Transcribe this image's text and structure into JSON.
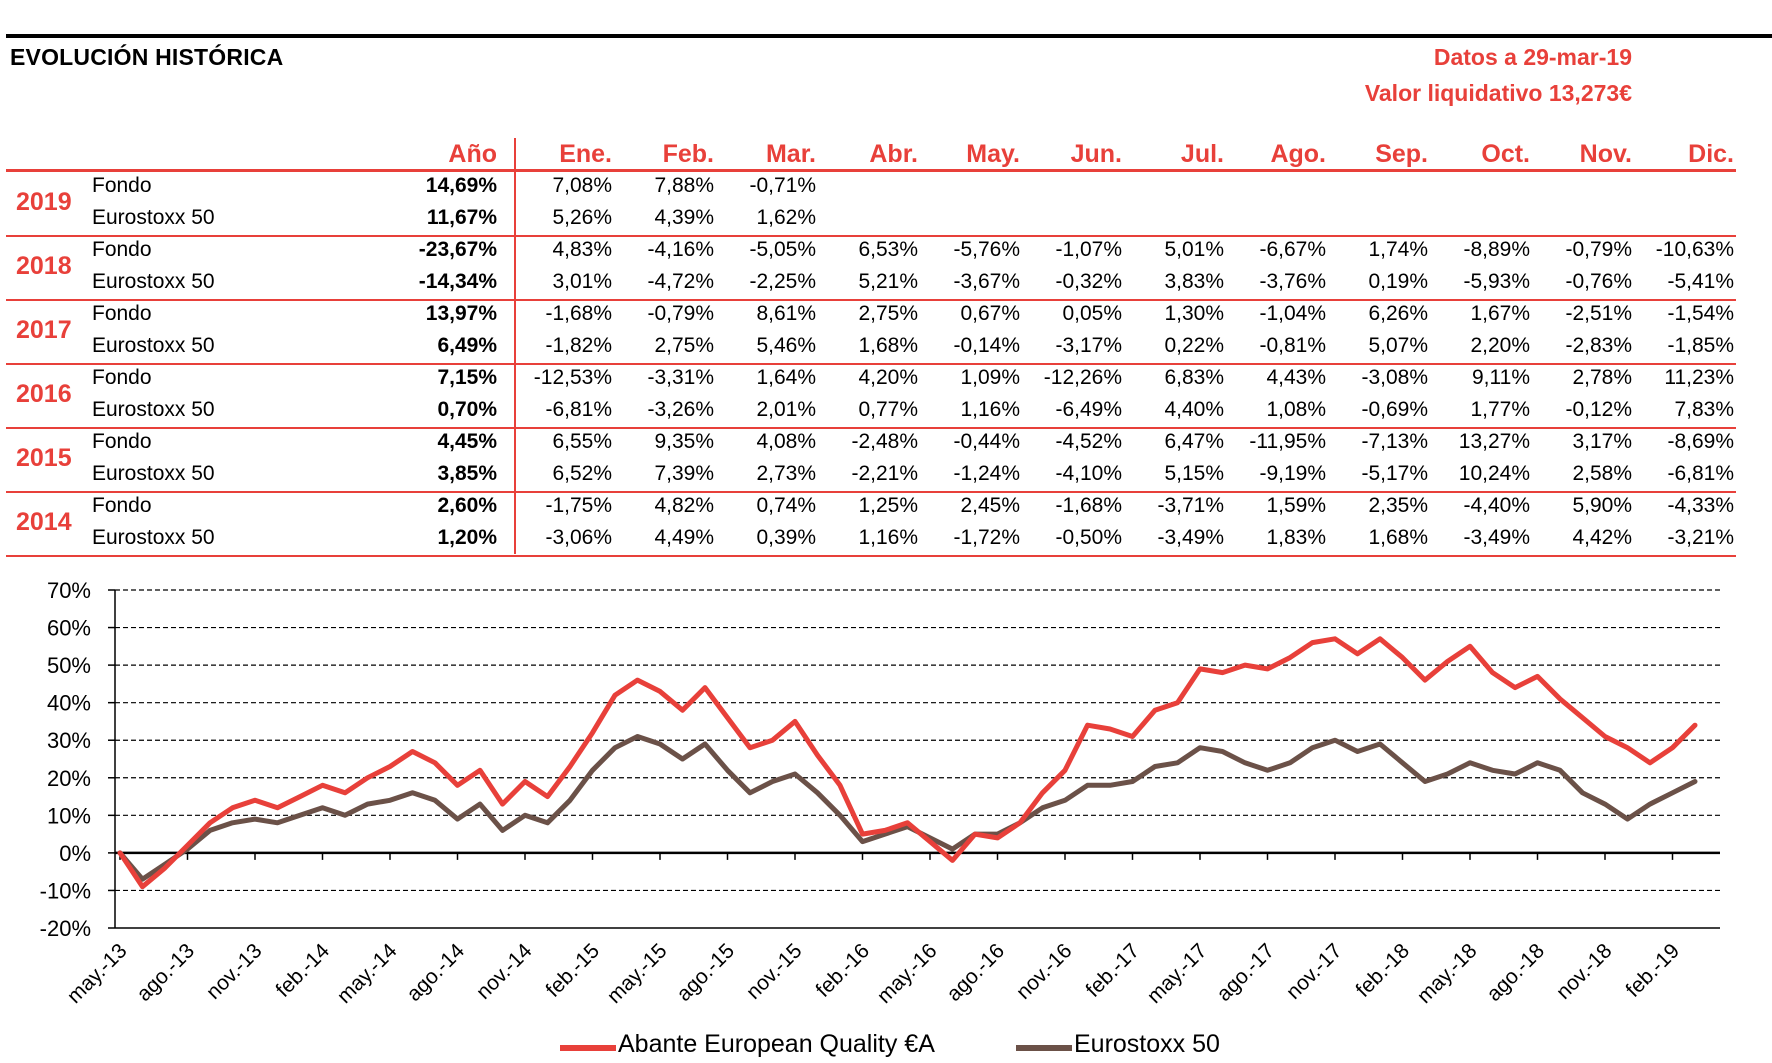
{
  "header": {
    "title": "EVOLUCIÓN HISTÓRICA",
    "date_line": "Datos a 29-mar-19",
    "nav_line": "Valor liquidativo 13,273€"
  },
  "table": {
    "columns": [
      "Año",
      "Ene.",
      "Feb.",
      "Mar.",
      "Abr.",
      "May.",
      "Jun.",
      "Jul.",
      "Ago.",
      "Sep.",
      "Oct.",
      "Nov.",
      "Dic."
    ],
    "years": [
      {
        "year": "2019",
        "rows": [
          {
            "label": "Fondo",
            "annual": "14,69%",
            "months": [
              "7,08%",
              "7,88%",
              "-0,71%",
              "",
              "",
              "",
              "",
              "",
              "",
              "",
              "",
              ""
            ]
          },
          {
            "label": "Eurostoxx 50",
            "annual": "11,67%",
            "months": [
              "5,26%",
              "4,39%",
              "1,62%",
              "",
              "",
              "",
              "",
              "",
              "",
              "",
              "",
              ""
            ]
          }
        ]
      },
      {
        "year": "2018",
        "rows": [
          {
            "label": "Fondo",
            "annual": "-23,67%",
            "months": [
              "4,83%",
              "-4,16%",
              "-5,05%",
              "6,53%",
              "-5,76%",
              "-1,07%",
              "5,01%",
              "-6,67%",
              "1,74%",
              "-8,89%",
              "-0,79%",
              "-10,63%"
            ]
          },
          {
            "label": "Eurostoxx 50",
            "annual": "-14,34%",
            "months": [
              "3,01%",
              "-4,72%",
              "-2,25%",
              "5,21%",
              "-3,67%",
              "-0,32%",
              "3,83%",
              "-3,76%",
              "0,19%",
              "-5,93%",
              "-0,76%",
              "-5,41%"
            ]
          }
        ]
      },
      {
        "year": "2017",
        "rows": [
          {
            "label": "Fondo",
            "annual": "13,97%",
            "months": [
              "-1,68%",
              "-0,79%",
              "8,61%",
              "2,75%",
              "0,67%",
              "0,05%",
              "1,30%",
              "-1,04%",
              "6,26%",
              "1,67%",
              "-2,51%",
              "-1,54%"
            ]
          },
          {
            "label": "Eurostoxx 50",
            "annual": "6,49%",
            "months": [
              "-1,82%",
              "2,75%",
              "5,46%",
              "1,68%",
              "-0,14%",
              "-3,17%",
              "0,22%",
              "-0,81%",
              "5,07%",
              "2,20%",
              "-2,83%",
              "-1,85%"
            ]
          }
        ]
      },
      {
        "year": "2016",
        "rows": [
          {
            "label": "Fondo",
            "annual": "7,15%",
            "months": [
              "-12,53%",
              "-3,31%",
              "1,64%",
              "4,20%",
              "1,09%",
              "-12,26%",
              "6,83%",
              "4,43%",
              "-3,08%",
              "9,11%",
              "2,78%",
              "11,23%"
            ]
          },
          {
            "label": "Eurostoxx 50",
            "annual": "0,70%",
            "months": [
              "-6,81%",
              "-3,26%",
              "2,01%",
              "0,77%",
              "1,16%",
              "-6,49%",
              "4,40%",
              "1,08%",
              "-0,69%",
              "1,77%",
              "-0,12%",
              "7,83%"
            ]
          }
        ]
      },
      {
        "year": "2015",
        "rows": [
          {
            "label": "Fondo",
            "annual": "4,45%",
            "months": [
              "6,55%",
              "9,35%",
              "4,08%",
              "-2,48%",
              "-0,44%",
              "-4,52%",
              "6,47%",
              "-11,95%",
              "-7,13%",
              "13,27%",
              "3,17%",
              "-8,69%"
            ]
          },
          {
            "label": "Eurostoxx 50",
            "annual": "3,85%",
            "months": [
              "6,52%",
              "7,39%",
              "2,73%",
              "-2,21%",
              "-1,24%",
              "-4,10%",
              "5,15%",
              "-9,19%",
              "-5,17%",
              "10,24%",
              "2,58%",
              "-6,81%"
            ]
          }
        ]
      },
      {
        "year": "2014",
        "rows": [
          {
            "label": "Fondo",
            "annual": "2,60%",
            "months": [
              "-1,75%",
              "4,82%",
              "0,74%",
              "1,25%",
              "2,45%",
              "-1,68%",
              "-3,71%",
              "1,59%",
              "2,35%",
              "-4,40%",
              "5,90%",
              "-4,33%"
            ]
          },
          {
            "label": "Eurostoxx 50",
            "annual": "1,20%",
            "months": [
              "-3,06%",
              "4,49%",
              "0,39%",
              "1,16%",
              "-1,72%",
              "-0,50%",
              "-3,49%",
              "1,83%",
              "1,68%",
              "-3,49%",
              "4,42%",
              "-3,21%"
            ]
          }
        ]
      }
    ]
  },
  "chart_data": {
    "type": "line",
    "ylim": [
      -20,
      70
    ],
    "yticks": [
      -20,
      -10,
      0,
      10,
      20,
      30,
      40,
      50,
      60,
      70
    ],
    "ytick_labels": [
      "-20%",
      "-10%",
      "0%",
      "10%",
      "20%",
      "30%",
      "40%",
      "50%",
      "60%",
      "70%"
    ],
    "xtick_labels": [
      "may.-13",
      "ago.-13",
      "nov.-13",
      "feb.-14",
      "may.-14",
      "ago.-14",
      "nov.-14",
      "feb.-15",
      "may.-15",
      "ago.-15",
      "nov.-15",
      "feb.-16",
      "may.-16",
      "ago.-16",
      "nov.-16",
      "feb.-17",
      "may.-17",
      "ago.-17",
      "nov.-17",
      "feb.-18",
      "may.-18",
      "ago.-18",
      "nov.-18",
      "feb.-19"
    ],
    "grid": true,
    "legend_position": "bottom",
    "x": [
      "may.-13",
      "jun.-13",
      "jul.-13",
      "ago.-13",
      "sep.-13",
      "oct.-13",
      "nov.-13",
      "dic.-13",
      "ene.-14",
      "feb.-14",
      "mar.-14",
      "abr.-14",
      "may.-14",
      "jun.-14",
      "jul.-14",
      "ago.-14",
      "sep.-14",
      "oct.-14",
      "nov.-14",
      "dic.-14",
      "ene.-15",
      "feb.-15",
      "mar.-15",
      "abr.-15",
      "may.-15",
      "jun.-15",
      "jul.-15",
      "ago.-15",
      "sep.-15",
      "oct.-15",
      "nov.-15",
      "dic.-15",
      "ene.-16",
      "feb.-16",
      "mar.-16",
      "abr.-16",
      "may.-16",
      "jun.-16",
      "jul.-16",
      "ago.-16",
      "sep.-16",
      "oct.-16",
      "nov.-16",
      "dic.-16",
      "ene.-17",
      "feb.-17",
      "mar.-17",
      "abr.-17",
      "may.-17",
      "jun.-17",
      "jul.-17",
      "ago.-17",
      "sep.-17",
      "oct.-17",
      "nov.-17",
      "dic.-17",
      "ene.-18",
      "feb.-18",
      "mar.-18",
      "abr.-18",
      "may.-18",
      "jun.-18",
      "jul.-18",
      "ago.-18",
      "sep.-18",
      "oct.-18",
      "nov.-18",
      "dic.-18",
      "ene.-19",
      "feb.-19",
      "mar.-19"
    ],
    "series": [
      {
        "name": "Abante European Quality €A",
        "color": "#e8403a",
        "values": [
          0,
          -9,
          -4,
          2,
          8,
          12,
          14,
          12,
          15,
          18,
          16,
          20,
          23,
          27,
          24,
          18,
          22,
          13,
          19,
          15,
          23,
          32,
          42,
          46,
          43,
          38,
          44,
          36,
          28,
          30,
          35,
          26,
          18,
          5,
          6,
          8,
          3,
          -2,
          5,
          4,
          8,
          16,
          22,
          34,
          33,
          31,
          38,
          40,
          49,
          48,
          50,
          49,
          52,
          56,
          57,
          53,
          57,
          52,
          46,
          51,
          55,
          48,
          44,
          47,
          41,
          36,
          31,
          28,
          24,
          28,
          34
        ]
      },
      {
        "name": "Eurostoxx 50",
        "color": "#6b5148",
        "values": [
          0,
          -7,
          -3,
          1,
          6,
          8,
          9,
          8,
          10,
          12,
          10,
          13,
          14,
          16,
          14,
          9,
          13,
          6,
          10,
          8,
          14,
          22,
          28,
          31,
          29,
          25,
          29,
          22,
          16,
          19,
          21,
          16,
          10,
          3,
          5,
          7,
          4,
          1,
          5,
          5,
          8,
          12,
          14,
          18,
          18,
          19,
          23,
          24,
          28,
          27,
          24,
          22,
          24,
          28,
          30,
          27,
          29,
          24,
          19,
          21,
          24,
          22,
          21,
          24,
          22,
          16,
          13,
          9,
          13,
          16,
          19
        ]
      }
    ]
  }
}
